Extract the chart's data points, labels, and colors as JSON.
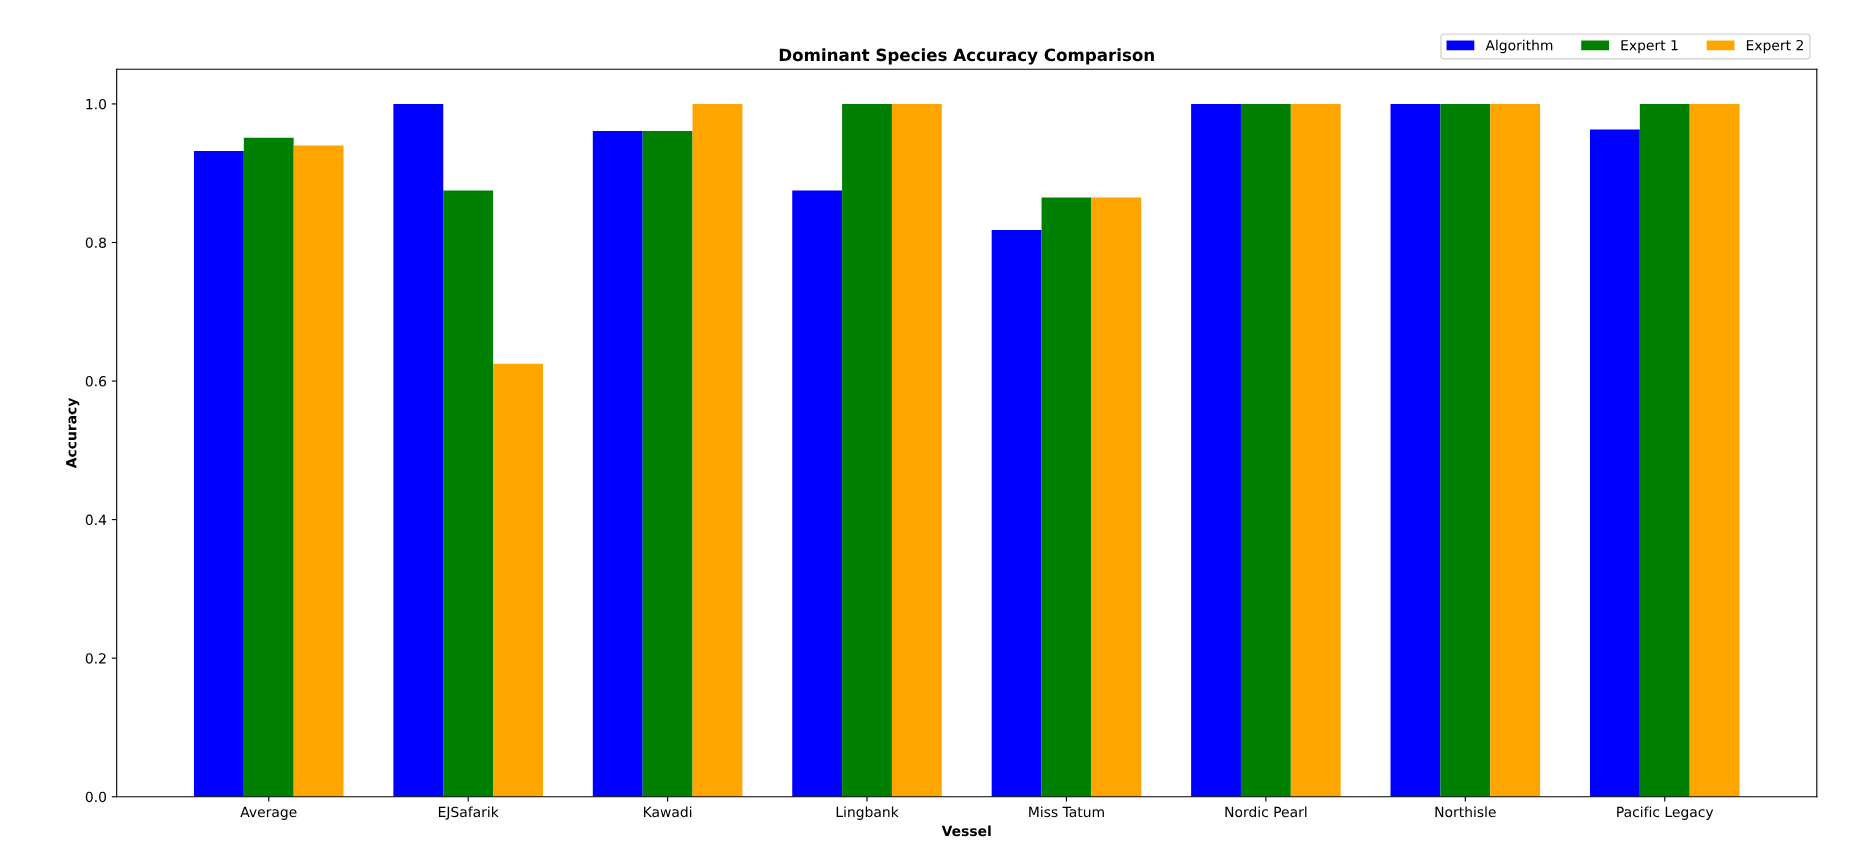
{
  "chart_data": {
    "type": "bar",
    "title": "Dominant Species Accuracy Comparison",
    "xlabel": "Vessel",
    "ylabel": "Accuracy",
    "categories": [
      "Average",
      "EJSafarik",
      "Kawadi",
      "Lingbank",
      "Miss Tatum",
      "Nordic Pearl",
      "Northisle",
      "Pacific Legacy"
    ],
    "series": [
      {
        "name": "Algorithm",
        "color": "#0000ff",
        "values": [
          0.932,
          1.0,
          0.961,
          0.875,
          0.818,
          1.0,
          1.0,
          0.963
        ]
      },
      {
        "name": "Expert 1",
        "color": "#008000",
        "values": [
          0.951,
          0.875,
          0.961,
          1.0,
          0.865,
          1.0,
          1.0,
          1.0
        ]
      },
      {
        "name": "Expert 2",
        "color": "#ffa500",
        "values": [
          0.94,
          0.625,
          1.0,
          1.0,
          0.865,
          1.0,
          1.0,
          1.0
        ]
      }
    ],
    "ylim": [
      0,
      1.05
    ],
    "yticks": [
      {
        "value": 0,
        "label": "0.0"
      },
      0.2,
      0.4,
      0.6,
      0.8,
      {
        "value": 1,
        "label": "1.0"
      }
    ],
    "legend": "top right"
  }
}
